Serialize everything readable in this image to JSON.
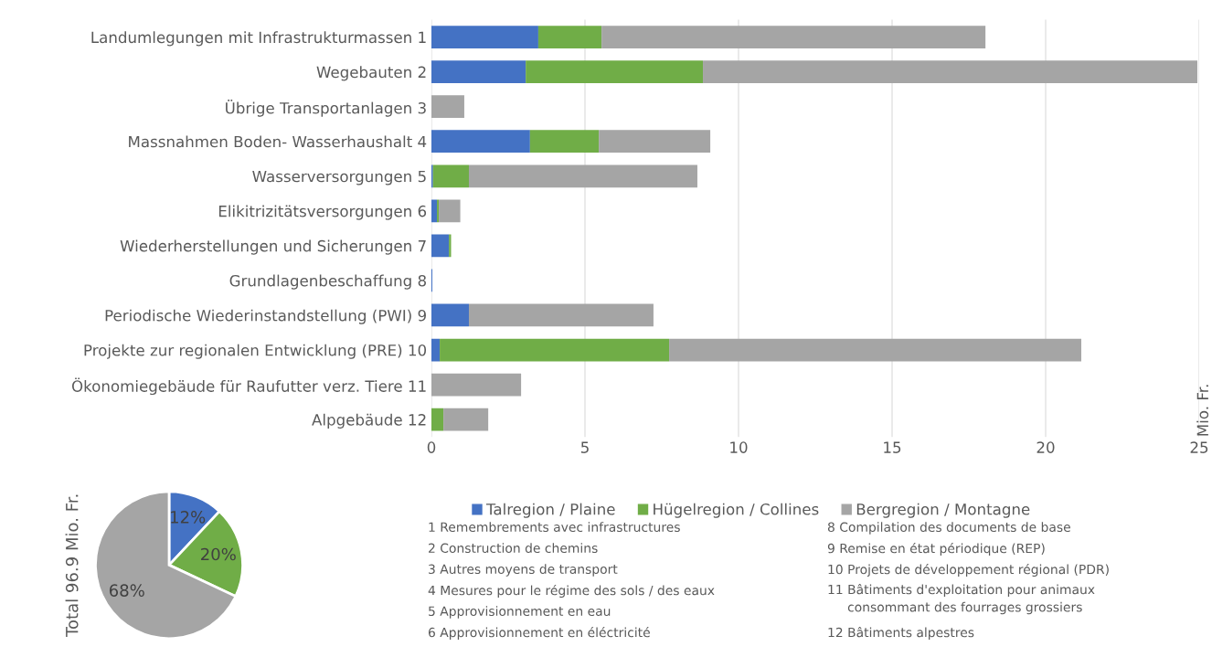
{
  "chart_data": [
    {
      "type": "bar",
      "orientation": "horizontal",
      "stacked": true,
      "ylabel": "Mio. Fr.",
      "categories": [
        "Landumlegungen mit Infrastrukturmassen 1",
        "Wegebauten 2",
        "Übrige Transportanlagen 3",
        "Massnahmen Boden- Wasserhaushalt 4",
        "Wasserversorgungen 5",
        "Elikitrizitätsversorgungen 6",
        "Wiederherstellungen und Sicherungen 7",
        "Grundlagenbeschaffung 8",
        "Periodische Wiederinstandstellung (PWI) 9",
        "Projekte zur regionalen Entwicklung (PRE) 10",
        "Ökonomiegebäude für Raufutter verz. Tiere 11",
        "Alpgebäude 12"
      ],
      "series": [
        {
          "name": "Talregion / Plaine",
          "color": "#4472c4",
          "values": [
            3.48,
            3.07,
            0,
            3.21,
            0.05,
            0.18,
            0.57,
            0.03,
            1.22,
            0.27,
            0,
            0
          ]
        },
        {
          "name": "Hügelregion / Collines",
          "color": "#70ad47",
          "values": [
            2.06,
            5.77,
            0,
            2.24,
            1.17,
            0.06,
            0.07,
            0,
            0,
            7.47,
            0,
            0.39
          ]
        },
        {
          "name": "Bergregion / Montagne",
          "color": "#a5a5a5",
          "values": [
            12.5,
            16.1,
            1.07,
            3.63,
            7.44,
            0.7,
            0,
            0,
            6.01,
            13.42,
            2.92,
            1.46
          ]
        }
      ],
      "xlim": [
        0,
        25
      ],
      "xticks": [
        0,
        5,
        10,
        15,
        20,
        25
      ],
      "grid": "x",
      "legend": "bottom",
      "annotations": [
        "1 Remembrements avec infrastructures",
        "2 Construction de chemins",
        "3 Autres moyens de transport",
        "4 Mesures pour le régime des sols / des eaux",
        "5 Approvisionnement en eau",
        "6 Approvisionnement en éléctricité",
        "8 Compilation des documents de base",
        "9 Remise en état périodique (REP)",
        "10 Projets de développement régional (PDR)",
        "11 Bâtiments d'exploitation pour animaux\n     consommant des fourrages grossiers",
        "12 Bâtiments alpestres"
      ]
    },
    {
      "type": "pie",
      "ylabel": "Total 96.9 Mio. Fr.",
      "categories": [
        null,
        null,
        null
      ],
      "values": [
        12,
        20,
        68
      ],
      "colors": [
        "#4472c4",
        "#70ad47",
        "#a5a5a5"
      ],
      "value_labels": [
        "12%",
        "20%",
        "68%"
      ]
    }
  ]
}
